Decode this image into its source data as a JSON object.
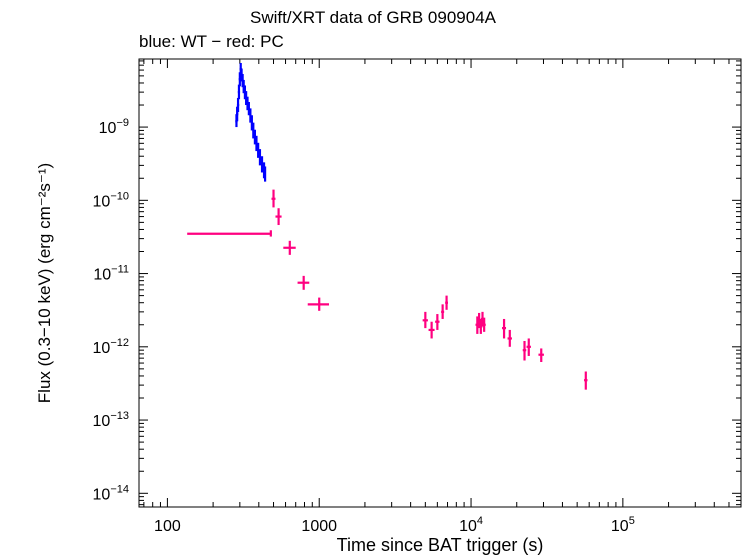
{
  "chart_data": {
    "type": "scatter",
    "title": "Swift/XRT data of GRB 090904A",
    "subtitle": "blue: WT − red: PC",
    "xlabel": "Time since BAT trigger (s)",
    "ylabel": "Flux (0.3−10 keV) (erg cm⁻²s⁻¹)",
    "xscale": "log",
    "yscale": "log",
    "xlim": [
      65,
      600000
    ],
    "ylim": [
      6.5e-15,
      8.5e-09
    ],
    "x_ticks": [
      {
        "value": 100,
        "label": "100"
      },
      {
        "value": 1000,
        "label": "1000"
      },
      {
        "value": 10000,
        "label": "10",
        "exp": "4"
      },
      {
        "value": 100000,
        "label": "10",
        "exp": "5"
      }
    ],
    "y_ticks": [
      {
        "value": 1e-14,
        "label": "10",
        "exp": "−14"
      },
      {
        "value": 1e-13,
        "label": "10",
        "exp": "−13"
      },
      {
        "value": 1e-12,
        "label": "10",
        "exp": "−12"
      },
      {
        "value": 1e-11,
        "label": "10",
        "exp": "−11"
      },
      {
        "value": 1e-10,
        "label": "10",
        "exp": "−10"
      },
      {
        "value": 1e-09,
        "label": "10",
        "exp": "−9"
      }
    ],
    "grid": false,
    "series": [
      {
        "name": "WT",
        "color": "#0000ff",
        "points": [
          [
            285,
            1.2e-09,
            5,
            1.5e-09,
            1e-09
          ],
          [
            288,
            1.5e-09,
            5,
            1.9e-09,
            1.2e-09
          ],
          [
            292,
            2e-09,
            5,
            2.5e-09,
            1.6e-09
          ],
          [
            296,
            3e-09,
            5,
            3.8e-09,
            2.4e-09
          ],
          [
            300,
            4.5e-09,
            5,
            5.6e-09,
            3.6e-09
          ],
          [
            304,
            6.2e-09,
            5,
            7.5e-09,
            5e-09
          ],
          [
            308,
            5.2e-09,
            5,
            6.3e-09,
            4.2e-09
          ],
          [
            313,
            4.3e-09,
            5,
            5.3e-09,
            3.5e-09
          ],
          [
            318,
            3.6e-09,
            5,
            4.4e-09,
            2.9e-09
          ],
          [
            324,
            3e-09,
            5,
            3.7e-09,
            2.4e-09
          ],
          [
            330,
            2.5e-09,
            5,
            3.1e-09,
            2e-09
          ],
          [
            337,
            2.1e-09,
            5,
            2.6e-09,
            1.7e-09
          ],
          [
            344,
            1.8e-09,
            5,
            2.2e-09,
            1.45e-09
          ],
          [
            352,
            1.45e-09,
            5,
            1.8e-09,
            1.15e-09
          ],
          [
            360,
            1.15e-09,
            5,
            1.45e-09,
            9e-10
          ],
          [
            368,
            9e-10,
            5,
            1.15e-09,
            7e-10
          ],
          [
            377,
            7.3e-10,
            5,
            9.2e-10,
            5.8e-10
          ],
          [
            386,
            6e-10,
            5,
            7.6e-10,
            4.7e-10
          ],
          [
            396,
            4.8e-10,
            5,
            6.1e-10,
            3.8e-10
          ],
          [
            407,
            3.9e-10,
            5,
            5e-10,
            3e-10
          ],
          [
            420,
            3.1e-10,
            6,
            4e-10,
            2.4e-10
          ],
          [
            433,
            2.6e-10,
            6,
            3.3e-10,
            2e-10
          ],
          [
            440,
            2.3e-10,
            6,
            2.9e-10,
            1.8e-10
          ]
        ]
      },
      {
        "name": "PC",
        "color": "#ff0080",
        "points": [
          [
            135,
            3.5e-11,
            0,
            3.9e-11,
            3.2e-11,
            480
          ],
          [
            500,
            1.05e-10,
            15,
            1.4e-10,
            8e-11
          ],
          [
            540,
            6e-11,
            25,
            7.8e-11,
            4.6e-11
          ],
          [
            640,
            2.25e-11,
            60,
            2.8e-11,
            1.8e-11
          ],
          [
            790,
            7.5e-12,
            70,
            9.3e-12,
            6e-12
          ],
          [
            1000,
            3.8e-12,
            160,
            4.7e-12,
            3.1e-12
          ],
          [
            5000,
            2.3e-12,
            200,
            3e-12,
            1.8e-12
          ],
          [
            5500,
            1.7e-12,
            250,
            2.2e-12,
            1.3e-12
          ],
          [
            6000,
            2.2e-12,
            200,
            2.8e-12,
            1.7e-12
          ],
          [
            6500,
            3e-12,
            150,
            3.8e-12,
            2.4e-12
          ],
          [
            6900,
            4e-12,
            150,
            5e-12,
            3.2e-12
          ],
          [
            11000,
            2e-12,
            300,
            2.6e-12,
            1.5e-12
          ],
          [
            11300,
            2.3e-12,
            300,
            2.9e-12,
            1.8e-12
          ],
          [
            11600,
            1.9e-12,
            300,
            2.4e-12,
            1.5e-12
          ],
          [
            11900,
            2.4e-12,
            300,
            3e-12,
            1.9e-12
          ],
          [
            12200,
            2e-12,
            300,
            2.5e-12,
            1.6e-12
          ],
          [
            16500,
            1.8e-12,
            500,
            2.4e-12,
            1.3e-12
          ],
          [
            18000,
            1.3e-12,
            600,
            1.7e-12,
            1e-12
          ],
          [
            22500,
            9e-13,
            600,
            1.2e-12,
            6.5e-13
          ],
          [
            24000,
            1e-12,
            800,
            1.3e-12,
            7.5e-13
          ],
          [
            29000,
            7.8e-13,
            1200,
            9.5e-13,
            6.2e-13
          ],
          [
            57000,
            3.5e-13,
            1500,
            4.6e-13,
            2.6e-13
          ]
        ]
      }
    ]
  }
}
